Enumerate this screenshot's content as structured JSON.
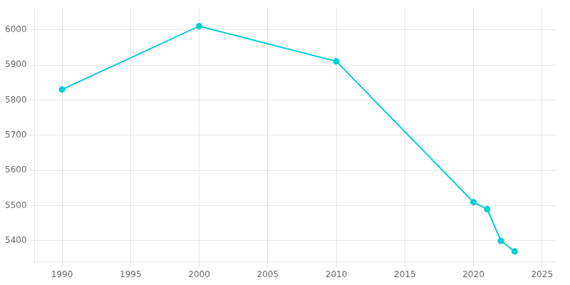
{
  "chart_data": {
    "type": "line",
    "x": [
      1990,
      2000,
      2010,
      2020,
      2021,
      2022,
      2023
    ],
    "values": [
      5830,
      6010,
      5910,
      5510,
      5490,
      5400,
      5370
    ],
    "color": "#00CED1",
    "marker": "circle",
    "xlim": [
      1988,
      2026
    ],
    "ylim": [
      5340,
      6060
    ],
    "xticks": [
      1990,
      1995,
      2000,
      2005,
      2010,
      2015,
      2020,
      2025
    ],
    "yticks": [
      5400,
      5500,
      5600,
      5700,
      5800,
      5900,
      6000
    ],
    "grid": true
  }
}
